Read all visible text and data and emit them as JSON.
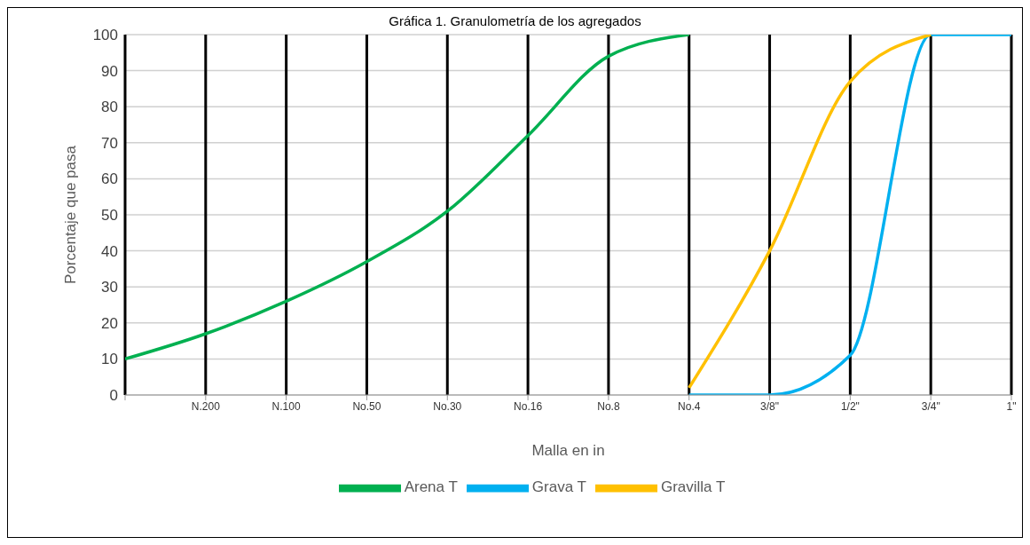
{
  "chart_data": {
    "type": "line",
    "title": "Gráfica  1. Granulometría de los agregados",
    "xlabel": "Malla en in",
    "ylabel": "Porcentaje que pasa",
    "categories": [
      null,
      "N.200",
      "N.100",
      "No.50",
      "No.30",
      "No.16",
      "No.8",
      "No.4",
      "3/8\"",
      "1/2\"",
      "3/4\"",
      "1\""
    ],
    "ylim": [
      0,
      100
    ],
    "yticks": [
      0,
      10,
      20,
      30,
      40,
      50,
      60,
      70,
      80,
      90,
      100
    ],
    "grid": true,
    "legend": "bottom",
    "marker": "none",
    "line_style": "solid",
    "series": [
      {
        "name": "Grava T",
        "color": "#00b0f0",
        "values": [
          null,
          null,
          null,
          null,
          null,
          null,
          null,
          0,
          0,
          11,
          100,
          100
        ]
      },
      {
        "name": "Gravilla T",
        "color": "#ffc000",
        "values": [
          null,
          null,
          null,
          null,
          null,
          null,
          null,
          2,
          40,
          87,
          100,
          null
        ]
      },
      {
        "name": "Arena T",
        "color": "#00b050",
        "values": [
          10,
          17,
          26,
          37,
          51,
          72,
          94,
          100,
          null,
          null,
          null,
          null
        ]
      }
    ]
  }
}
